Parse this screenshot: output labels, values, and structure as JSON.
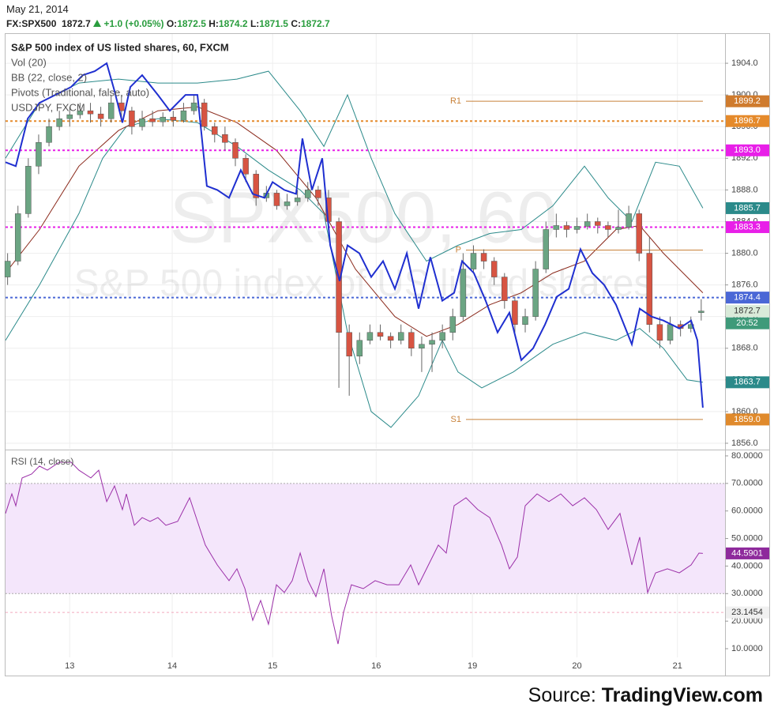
{
  "date": "May 21, 2014",
  "quote": {
    "symbol": "FX:SPX500",
    "change": "+1.0 (+0.05%)",
    "labels": [
      "O:",
      "H:",
      "L:",
      "C:"
    ]
  },
  "source": {
    "prefix": "Source:",
    "brand": "TradingView.com"
  },
  "chart_data": [
    {
      "type": "candlestick",
      "title": "S&P 500 index of US listed shares, 60, FXCM",
      "legend": [
        "Vol (20)",
        "BB (22, close, 2)",
        "Pivots (Traditional, false, auto)",
        "USDJPY, FXCM"
      ],
      "watermark": [
        "SPX500, 60",
        "S&P 500 index of US listed shares"
      ],
      "xlim": [
        -0.2,
        69.3
      ],
      "ylim": [
        1855.3,
        1907.7
      ],
      "yticks": [
        {
          "value": 1856,
          "label": "1856.0"
        },
        {
          "value": 1860,
          "label": "1860.0"
        },
        {
          "value": 1864,
          "label": "1864.0"
        },
        {
          "value": 1868,
          "label": "1868.0"
        },
        {
          "value": 1872,
          "label": "1872.0"
        },
        {
          "value": 1876,
          "label": "1876.0"
        },
        {
          "value": 1880,
          "label": "1880.0"
        },
        {
          "value": 1884,
          "label": "1884.0"
        },
        {
          "value": 1888,
          "label": "1888.0"
        },
        {
          "value": 1892,
          "label": "1892.0"
        },
        {
          "value": 1896,
          "label": "1896.0"
        },
        {
          "value": 1900,
          "label": "1900.0"
        },
        {
          "value": 1904,
          "label": "1904.0"
        }
      ],
      "grid": true,
      "up_color": "#6ba583",
      "down_color": "#d75442",
      "last_color": "#d9ead9",
      "x": [
        0,
        1,
        2,
        3,
        4,
        5,
        6,
        7,
        8,
        9,
        10,
        11,
        12,
        13,
        14,
        15,
        16,
        17,
        18,
        19,
        20,
        21,
        22,
        23,
        24,
        25,
        26,
        27,
        28,
        29,
        30,
        31,
        32,
        33,
        34,
        35,
        36,
        37,
        38,
        39,
        40,
        41,
        42,
        43,
        44,
        45,
        46,
        47,
        48,
        49,
        50,
        51,
        52,
        53,
        54,
        55,
        56,
        57,
        58,
        59,
        60,
        61,
        62,
        63,
        64,
        65,
        66,
        67
      ],
      "candles": [
        [
          1877,
          1880,
          1876,
          1879
        ],
        [
          1879,
          1886,
          1878.5,
          1885
        ],
        [
          1885,
          1892,
          1884.5,
          1891
        ],
        [
          1891,
          1895,
          1890,
          1894
        ],
        [
          1894,
          1897,
          1893.5,
          1896
        ],
        [
          1896,
          1898,
          1895.5,
          1897
        ],
        [
          1897,
          1898.5,
          1896,
          1897.5
        ],
        [
          1897.5,
          1899,
          1897,
          1898
        ],
        [
          1898,
          1899,
          1896.5,
          1897.6
        ],
        [
          1897.6,
          1898.5,
          1896,
          1897
        ],
        [
          1897,
          1900,
          1896.5,
          1899
        ],
        [
          1899,
          1900,
          1897,
          1898
        ],
        [
          1898,
          1898.5,
          1895,
          1896
        ],
        [
          1896,
          1898,
          1895.5,
          1897
        ],
        [
          1897,
          1898,
          1896,
          1896.6
        ],
        [
          1896.6,
          1897.8,
          1896,
          1897.2
        ],
        [
          1897.2,
          1898,
          1896,
          1896.8
        ],
        [
          1896.8,
          1899,
          1896.5,
          1898
        ],
        [
          1898,
          1900,
          1897.5,
          1899
        ],
        [
          1899,
          1899.5,
          1895.5,
          1896
        ],
        [
          1896,
          1896.5,
          1894,
          1895
        ],
        [
          1895,
          1896,
          1893,
          1894
        ],
        [
          1894,
          1894.5,
          1891,
          1892
        ],
        [
          1892,
          1892.5,
          1889,
          1890
        ],
        [
          1890,
          1890.5,
          1886,
          1887
        ],
        [
          1887,
          1888.5,
          1886.5,
          1887.6
        ],
        [
          1887.6,
          1888,
          1885.5,
          1886
        ],
        [
          1886,
          1887.5,
          1885.5,
          1886.5
        ],
        [
          1886.5,
          1888,
          1886,
          1887
        ],
        [
          1887,
          1889,
          1886.5,
          1888
        ],
        [
          1888,
          1888.5,
          1886,
          1887
        ],
        [
          1887,
          1888,
          1883,
          1884
        ],
        [
          1884,
          1884.5,
          1863,
          1870
        ],
        [
          1870,
          1871,
          1862,
          1867
        ],
        [
          1867,
          1870,
          1866,
          1869
        ],
        [
          1869,
          1871,
          1868.5,
          1870
        ],
        [
          1870,
          1871,
          1869,
          1869.5
        ],
        [
          1869.5,
          1870,
          1868,
          1869
        ],
        [
          1869,
          1871,
          1868.5,
          1870
        ],
        [
          1870,
          1870.5,
          1867,
          1868
        ],
        [
          1868,
          1869.5,
          1865,
          1868.5
        ],
        [
          1868.5,
          1870,
          1865,
          1869
        ],
        [
          1869,
          1871,
          1868,
          1870
        ],
        [
          1870,
          1873,
          1869,
          1872
        ],
        [
          1872,
          1880,
          1871.5,
          1878
        ],
        [
          1878,
          1881,
          1877.5,
          1880
        ],
        [
          1880,
          1880.5,
          1878,
          1879
        ],
        [
          1879,
          1879.5,
          1876,
          1877
        ],
        [
          1877,
          1877.5,
          1873,
          1874
        ],
        [
          1874,
          1874.5,
          1870,
          1871
        ],
        [
          1871,
          1873,
          1870,
          1872
        ],
        [
          1872,
          1879,
          1871.5,
          1878
        ],
        [
          1878,
          1884,
          1877.5,
          1883
        ],
        [
          1883,
          1885,
          1882,
          1883.5
        ],
        [
          1883.5,
          1884,
          1882,
          1883
        ],
        [
          1883,
          1884.5,
          1882.5,
          1883.4
        ],
        [
          1883.4,
          1885,
          1883,
          1884
        ],
        [
          1884,
          1884.5,
          1882.5,
          1883.5
        ],
        [
          1883.5,
          1884,
          1882,
          1883
        ],
        [
          1883,
          1885.5,
          1882.5,
          1883.3
        ],
        [
          1883.3,
          1886,
          1883,
          1885
        ],
        [
          1885,
          1885.5,
          1879,
          1880
        ],
        [
          1880,
          1882,
          1870,
          1871
        ],
        [
          1871,
          1872,
          1868,
          1869
        ],
        [
          1869,
          1872,
          1868.5,
          1871
        ],
        [
          1871,
          1871.5,
          1869.5,
          1870.5
        ],
        [
          1870.5,
          1872,
          1870,
          1871
        ],
        [
          1872.5,
          1874.2,
          1871.5,
          1872.7
        ]
      ],
      "countdown": {
        "label": "20:52",
        "color": "#3f9a7a"
      },
      "bollinger": {
        "color": "#2b8a8a",
        "middle_color": "#8b2a1c",
        "upper": {
          "x": [
            -0.2,
            3.08,
            6.89,
            10.71,
            14.52,
            18.34,
            22.15,
            25.2,
            28.26,
            30.55,
            32.83,
            35.12,
            37.41,
            40.46,
            43.51,
            46.57,
            49.62,
            52.67,
            55.72,
            58.01,
            60.3,
            62.59,
            64.88,
            67.16
          ],
          "values": [
            1892,
            1899,
            1901.5,
            1902,
            1901.5,
            1901.5,
            1902,
            1903,
            1898,
            1893.5,
            1900,
            1892,
            1885,
            1879,
            1881,
            1882.5,
            1883,
            1886,
            1891,
            1887,
            1884,
            1891.5,
            1891,
            1885.7
          ]
        },
        "middle": {
          "x": [
            -0.2,
            3.08,
            6.89,
            10.71,
            14.52,
            18.34,
            22.15,
            25.97,
            29.78,
            33.6,
            37.41,
            40.46,
            43.51,
            46.57,
            49.62,
            52.67,
            55.72,
            58.77,
            61.06,
            63.35,
            67.16
          ],
          "values": [
            1877.5,
            1883,
            1891,
            1895.5,
            1898,
            1898.5,
            1896.5,
            1893,
            1887,
            1878,
            1872,
            1869.5,
            1871,
            1873.5,
            1875,
            1877.5,
            1879,
            1883,
            1883.5,
            1880,
            1875
          ]
        },
        "lower": {
          "x": [
            -0.2,
            3.08,
            6.89,
            9.18,
            11.47,
            14.52,
            18.34,
            22.15,
            25.2,
            28.26,
            30.55,
            32.83,
            35.12,
            37.03,
            39.7,
            41.99,
            43.51,
            45.8,
            48.85,
            52.67,
            55.72,
            58.77,
            61.06,
            63.35,
            65.64,
            67.16
          ],
          "values": [
            1869,
            1876,
            1885,
            1892,
            1896,
            1897,
            1896.5,
            1893.5,
            1890.5,
            1888,
            1885,
            1870,
            1860,
            1858,
            1862,
            1869,
            1865,
            1863,
            1865,
            1868.5,
            1870,
            1869,
            1870.5,
            1868,
            1864,
            1863.7
          ]
        }
      },
      "overlay": {
        "color": "#1f2fd0",
        "x": [
          -0.2,
          0.79,
          1.94,
          3.08,
          4.61,
          6.13,
          7.28,
          8.42,
          9.57,
          10.33,
          11.09,
          11.85,
          13.0,
          14.52,
          15.67,
          17.19,
          18.34,
          19.25,
          20.25,
          21.39,
          22.53,
          23.68,
          24.82,
          25.59,
          26.73,
          27.87,
          28.48,
          29.4,
          30.39,
          31.16,
          32.07,
          32.83,
          33.98,
          35.12,
          36.27,
          37.41,
          38.56,
          39.7,
          40.84,
          41.99,
          43.13,
          43.9,
          45.04,
          46.18,
          47.33,
          48.47,
          49.62,
          50.76,
          51.91,
          53.05,
          54.2,
          55.34,
          56.48,
          57.63,
          58.77,
          60.3,
          61.06,
          62.2,
          63.35,
          64.88,
          66.02,
          66.63,
          67.16
        ],
        "values": [
          1891.5,
          1891,
          1897,
          1899,
          1900,
          1901,
          1902.5,
          1903,
          1904,
          1900.5,
          1896.5,
          1901,
          1902.5,
          1900,
          1898,
          1900,
          1900,
          1888.5,
          1888,
          1887,
          1890.5,
          1887.5,
          1887,
          1889,
          1888,
          1887.5,
          1894.5,
          1888,
          1892,
          1881,
          1876.5,
          1881,
          1880,
          1877,
          1879,
          1875.5,
          1880,
          1873,
          1879.5,
          1874,
          1875,
          1879,
          1877.5,
          1874,
          1870,
          1872.5,
          1866.5,
          1868,
          1871,
          1874.5,
          1875.5,
          1880.5,
          1877.5,
          1876,
          1873.5,
          1868.5,
          1873,
          1872,
          1871.5,
          1870.5,
          1871.5,
          1869,
          1860.5
        ]
      },
      "pivot_color": "#c8823a",
      "pivots": [
        {
          "name": "R1",
          "value": 1899.2,
          "badge_color": "#cf7b2e"
        },
        {
          "name": "P",
          "value": 1880.4
        },
        {
          "name": "S1",
          "value": 1859,
          "label": "1859.0",
          "badge_color": "#e08a2c"
        }
      ],
      "price_labels": [
        {
          "value": 1896.7,
          "color": "#e58a2b"
        },
        {
          "value": 1893,
          "label": "1893.0",
          "color": "#e81fe8"
        },
        {
          "value": 1883.3,
          "color": "#e81fe8"
        },
        {
          "value": 1874.4,
          "color": "#4a67d6"
        }
      ]
    },
    {
      "type": "line",
      "title": "RSI (14, close)",
      "color": "#9b2fa8",
      "xlim": [
        -0.2,
        69.3
      ],
      "ylim": [
        0.25,
        82
      ],
      "xticks": [
        {
          "value": 6,
          "label": "13"
        },
        {
          "value": 15.9,
          "label": "14"
        },
        {
          "value": 25.6,
          "label": "15"
        },
        {
          "value": 35.6,
          "label": "16"
        },
        {
          "value": 44.9,
          "label": "19"
        },
        {
          "value": 55,
          "label": "20"
        },
        {
          "value": 64.7,
          "label": "21"
        }
      ],
      "yticks": [
        {
          "value": 10,
          "label": "10.0000"
        },
        {
          "value": 20,
          "label": "20.0000"
        },
        {
          "value": 30,
          "label": "30.0000"
        },
        {
          "value": 40,
          "label": "40.0000"
        },
        {
          "value": 50,
          "label": "50.0000"
        },
        {
          "value": 60,
          "label": "60.0000"
        },
        {
          "value": 70,
          "label": "70.0000"
        },
        {
          "value": 80,
          "label": "80.0000"
        }
      ],
      "band": [
        30,
        70
      ],
      "band_color": "#f4e6fb",
      "last_color": "#8e2a9c",
      "level": {
        "value": 23.1454,
        "color": "#f2a9bd"
      },
      "x": [
        -0.2,
        0.41,
        0.79,
        1.4,
        2.32,
        3.08,
        3.84,
        4.99,
        6.13,
        6.89,
        8.04,
        8.8,
        9.57,
        10.33,
        11.09,
        11.47,
        12.24,
        13.0,
        13.76,
        14.52,
        15.29,
        16.43,
        17.58,
        18.34,
        19.1,
        20.25,
        21.39,
        22.15,
        22.92,
        23.68,
        24.44,
        25.2,
        25.97,
        26.73,
        27.49,
        28.26,
        29.02,
        29.78,
        30.55,
        31.31,
        31.92,
        32.45,
        33.21,
        34.36,
        35.5,
        36.65,
        37.79,
        38.94,
        39.7,
        40.84,
        41.61,
        42.37,
        43.13,
        44.28,
        45.42,
        46.57,
        47.71,
        48.47,
        49.24,
        50.0,
        51.14,
        52.29,
        53.43,
        54.58,
        55.72,
        56.87,
        58.01,
        59.15,
        60.3,
        61.06,
        61.82,
        62.59,
        63.73,
        64.88,
        66.02,
        66.78,
        67.16
      ],
      "values": [
        59.1,
        66.2,
        61.9,
        72,
        73.4,
        76.3,
        74.8,
        77.7,
        77.7,
        74.8,
        72,
        74.8,
        63.4,
        69.1,
        60.5,
        66.2,
        54.8,
        57.6,
        56.2,
        57.6,
        54.8,
        56.2,
        64.8,
        56.2,
        47.6,
        40.4,
        34.7,
        39,
        31.8,
        20.3,
        27.5,
        18.9,
        33.2,
        30.4,
        34.7,
        44.7,
        34.7,
        28.9,
        39,
        21.8,
        11.7,
        23.2,
        33.2,
        31.8,
        34.7,
        33.2,
        33.2,
        40.4,
        33.2,
        41.8,
        47.6,
        44.7,
        61.9,
        64.8,
        60.5,
        57.6,
        47.6,
        39,
        43.3,
        61.9,
        66.2,
        63.4,
        66.2,
        61.9,
        64.8,
        60.5,
        53.3,
        59.1,
        40.4,
        50.5,
        30.4,
        37.5,
        39,
        37.5,
        40.4,
        44.7,
        44.5901
      ]
    }
  ]
}
